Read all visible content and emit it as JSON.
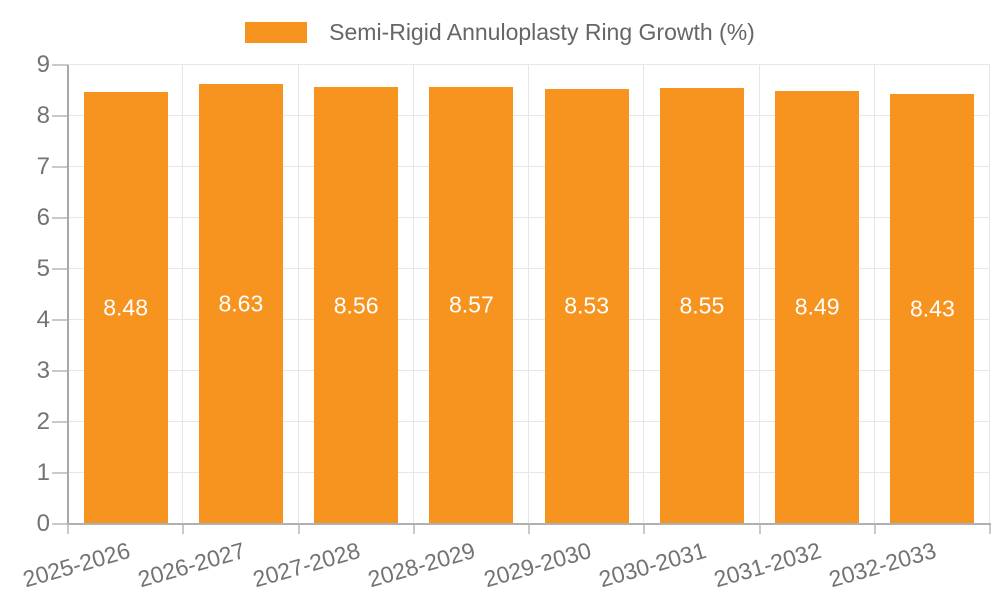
{
  "legend": {
    "label": "Semi-Rigid Annuloplasty Ring Growth (%)"
  },
  "colors": {
    "bar": "#F6941F",
    "grid": "#E7E7E7",
    "axis_line": "#A8A8A8",
    "bottom_axis_line": "#B0B0B0",
    "tick": "#C9C9C9",
    "axis_text": "#737373",
    "legend_text": "#666666",
    "value_text": "#FFFFFF"
  },
  "chart_data": {
    "type": "bar",
    "title": "",
    "xlabel": "",
    "ylabel": "",
    "categories": [
      "2025-2026",
      "2026-2027",
      "2027-2028",
      "2028-2029",
      "2029-2030",
      "2030-2031",
      "2031-2032",
      "2032-2033"
    ],
    "series": [
      {
        "name": "Semi-Rigid Annuloplasty Ring Growth (%)",
        "values": [
          8.48,
          8.63,
          8.56,
          8.57,
          8.53,
          8.55,
          8.49,
          8.43
        ]
      }
    ],
    "value_labels": [
      "8.48",
      "8.63",
      "8.56",
      "8.57",
      "8.53",
      "8.55",
      "8.49",
      "8.43"
    ],
    "ylim": [
      0,
      9
    ],
    "yticks": [
      0,
      1,
      2,
      3,
      4,
      5,
      6,
      7,
      8,
      9
    ],
    "grid": true,
    "legend_position": "top-center",
    "value_label_position": "inside-middle",
    "xtick_rotation_deg": -16
  }
}
